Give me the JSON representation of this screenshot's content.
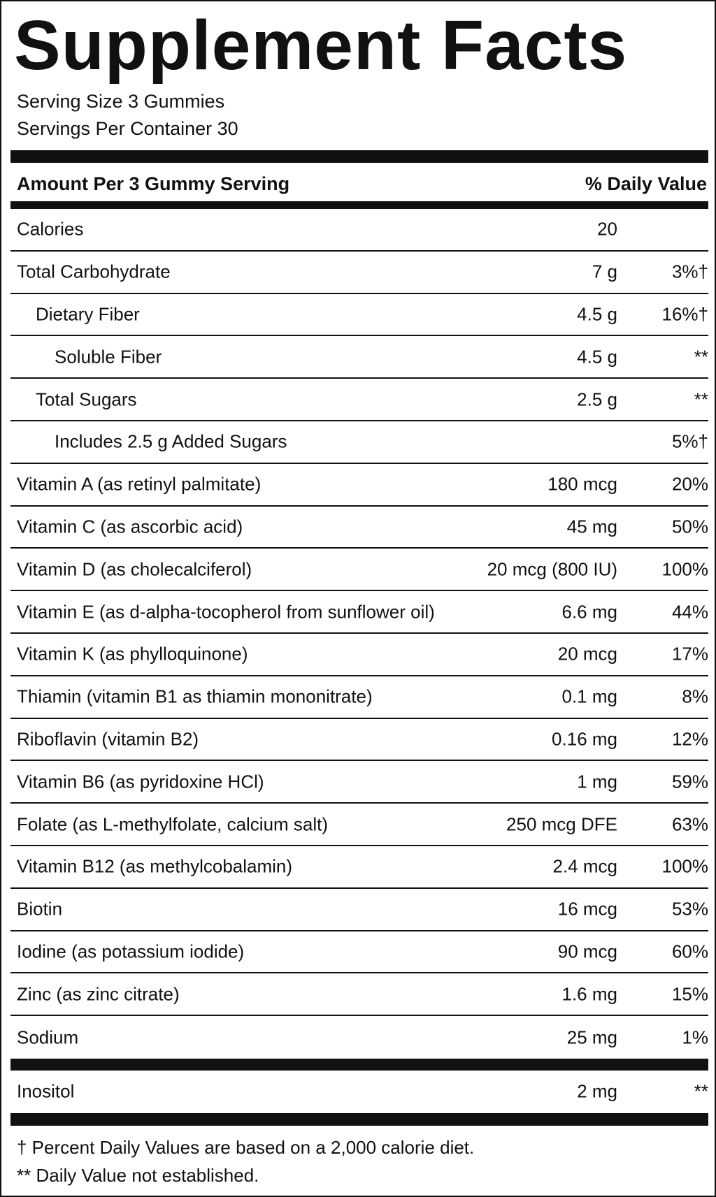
{
  "title": "Supplement Facts",
  "serving_size": "Serving Size 3 Gummies",
  "servings_per_container": "Servings Per Container 30",
  "header": {
    "amount": "Amount Per 3 Gummy Serving",
    "daily_value": "% Daily Value"
  },
  "rows": [
    {
      "name": "Calories",
      "amount": "20"
    },
    {
      "name": "Total Carbohydrate",
      "amount": "7 g",
      "dv": "3%†"
    },
    {
      "name": "Dietary Fiber",
      "amount": "4.5 g",
      "dv": "16%†"
    },
    {
      "name": "Soluble Fiber",
      "amount": "4.5 g",
      "dv": "**"
    },
    {
      "name": "Total Sugars",
      "amount": "2.5 g",
      "dv": "**"
    },
    {
      "name": "Includes 2.5 g Added Sugars",
      "dv": "5%†"
    },
    {
      "name": "Vitamin A (as retinyl palmitate)",
      "amount": "180 mcg",
      "dv": "20%"
    },
    {
      "name": "Vitamin C (as ascorbic acid)",
      "amount": "45 mg",
      "dv": "50%"
    },
    {
      "name": "Vitamin D (as cholecalciferol)",
      "amount": "20 mcg (800 IU)",
      "dv": "100%"
    },
    {
      "name": "Vitamin E (as d-alpha-tocopherol from sunflower oil)",
      "amount": "6.6 mg",
      "dv": "44%"
    },
    {
      "name": "Vitamin K (as phylloquinone)",
      "amount": "20 mcg",
      "dv": "17%"
    },
    {
      "name": "Thiamin (vitamin B1 as thiamin mononitrate)",
      "amount": "0.1 mg",
      "dv": "8%"
    },
    {
      "name": "Riboflavin (vitamin B2)",
      "amount": "0.16 mg",
      "dv": "12%"
    },
    {
      "name": "Vitamin B6 (as pyridoxine HCl)",
      "amount": "1 mg",
      "dv": "59%"
    },
    {
      "name": "Folate (as L-methylfolate, calcium salt)",
      "amount": "250 mcg DFE",
      "dv": "63%"
    },
    {
      "name": "Vitamin B12 (as methylcobalamin)",
      "amount": "2.4 mcg",
      "dv": "100%"
    },
    {
      "name": "Biotin",
      "amount": "16 mcg",
      "dv": "53%"
    },
    {
      "name": "Iodine (as potassium iodide)",
      "amount": "90 mcg",
      "dv": "60%"
    },
    {
      "name": "Zinc (as zinc citrate)",
      "amount": "1.6 mg",
      "dv": "15%"
    },
    {
      "name": "Sodium",
      "amount": "25 mg",
      "dv": "1%"
    }
  ],
  "other_rows": [
    {
      "name": "Inositol",
      "amount": "2 mg",
      "dv": "**"
    }
  ],
  "footnotes": [
    "† Percent Daily Values are based on a 2,000 calorie diet.",
    "** Daily Value not established."
  ]
}
